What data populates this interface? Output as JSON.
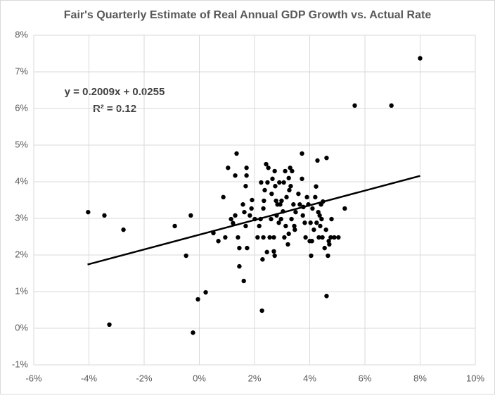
{
  "chart_data": {
    "type": "scatter",
    "title": "Fair's Quarterly Estimate of Real Annual GDP Growth vs. Actual Rate",
    "annotations": [
      "y = 0.2009x + 0.0255",
      "R² = 0.12"
    ],
    "xlim": [
      -6,
      10
    ],
    "xticks": [
      {
        "value": -6,
        "label": "-6%"
      },
      {
        "value": -4,
        "label": "-4%"
      },
      {
        "value": -2,
        "label": "-2%"
      },
      {
        "value": 0,
        "label": "0%"
      },
      {
        "value": 2,
        "label": "2%"
      },
      {
        "value": 4,
        "label": "4%"
      },
      {
        "value": 6,
        "label": "6%"
      },
      {
        "value": 8,
        "label": "8%"
      },
      {
        "value": 10,
        "label": "10%"
      }
    ],
    "ylim": [
      -1,
      8
    ],
    "yticks": [
      {
        "value": -1,
        "label": "-1%"
      },
      {
        "value": 0,
        "label": "0%"
      },
      {
        "value": 1,
        "label": "1%"
      },
      {
        "value": 2,
        "label": "2%"
      },
      {
        "value": 3,
        "label": "3%"
      },
      {
        "value": 4,
        "label": "4%"
      },
      {
        "value": 5,
        "label": "5%"
      },
      {
        "value": 6,
        "label": "6%"
      },
      {
        "value": 7,
        "label": "7%"
      },
      {
        "value": 8,
        "label": "8%"
      }
    ],
    "grid": true,
    "color": "#000000",
    "x": [
      -4.03,
      -3.44,
      -2.75,
      -3.26,
      -0.89,
      -0.48,
      -0.31,
      -0.23,
      -0.05,
      0.23,
      0.51,
      0.69,
      0.87,
      0.94,
      1.04,
      1.15,
      1.22,
      1.3,
      1.3,
      1.35,
      1.4,
      1.45,
      1.45,
      1.58,
      1.61,
      1.63,
      1.68,
      1.68,
      1.71,
      1.71,
      1.73,
      1.83,
      1.89,
      1.91,
      2.01,
      2.11,
      2.17,
      2.22,
      2.24,
      2.27,
      2.29,
      2.32,
      2.32,
      2.34,
      2.37,
      2.42,
      2.45,
      2.47,
      2.5,
      2.55,
      2.6,
      2.62,
      2.65,
      2.7,
      2.7,
      2.73,
      2.73,
      2.75,
      2.78,
      2.8,
      2.83,
      2.88,
      2.9,
      2.93,
      2.96,
      2.98,
      3.03,
      3.06,
      3.08,
      3.11,
      3.13,
      3.16,
      3.21,
      3.24,
      3.24,
      3.26,
      3.29,
      3.31,
      3.34,
      3.36,
      3.41,
      3.44,
      3.46,
      3.49,
      3.59,
      3.64,
      3.72,
      3.72,
      3.75,
      3.77,
      3.82,
      3.85,
      3.9,
      3.95,
      4.0,
      4.03,
      4.05,
      4.08,
      4.1,
      4.15,
      4.2,
      4.23,
      4.25,
      4.28,
      4.31,
      4.33,
      4.36,
      4.38,
      4.41,
      4.43,
      4.46,
      4.48,
      4.54,
      4.59,
      4.61,
      4.61,
      4.66,
      4.69,
      4.71,
      4.76,
      4.79,
      4.89,
      5.04,
      5.27,
      5.63,
      6.96,
      8.0
    ],
    "values": [
      3.17,
      3.08,
      2.69,
      0.1,
      2.79,
      1.98,
      3.08,
      -0.12,
      0.79,
      0.98,
      2.6,
      2.38,
      3.58,
      2.48,
      4.38,
      2.98,
      2.87,
      4.17,
      3.08,
      4.77,
      2.48,
      1.69,
      2.19,
      3.38,
      1.29,
      3.17,
      3.88,
      2.79,
      4.38,
      4.17,
      2.19,
      3.08,
      3.27,
      3.5,
      2.98,
      2.48,
      2.79,
      2.98,
      3.98,
      0.48,
      1.88,
      2.48,
      3.27,
      3.48,
      3.77,
      4.48,
      2.08,
      3.98,
      4.38,
      2.48,
      2.98,
      3.67,
      4.08,
      2.48,
      2.1,
      1.98,
      4.29,
      3.88,
      3.48,
      3.08,
      3.38,
      2.88,
      3.98,
      3.38,
      2.98,
      3.48,
      3.19,
      3.98,
      2.48,
      4.29,
      2.79,
      3.58,
      2.29,
      4.1,
      2.58,
      3.77,
      4.38,
      3.88,
      2.98,
      4.29,
      3.38,
      2.79,
      2.69,
      3.17,
      3.67,
      3.38,
      4.77,
      4.08,
      3.08,
      3.31,
      2.88,
      2.48,
      3.58,
      3.38,
      2.38,
      2.88,
      1.98,
      2.38,
      3.27,
      2.69,
      3.58,
      3.87,
      2.88,
      4.58,
      3.17,
      2.48,
      3.08,
      2.79,
      3.38,
      2.98,
      2.48,
      3.46,
      2.19,
      2.69,
      0.88,
      4.65,
      1.98,
      2.38,
      2.29,
      2.48,
      2.98,
      2.48,
      2.48,
      3.27,
      6.08,
      6.08,
      7.37
    ],
    "trendline": {
      "color": "#000000",
      "x": [
        -4.05,
        8.0
      ],
      "values": [
        1.74,
        4.16
      ]
    }
  }
}
